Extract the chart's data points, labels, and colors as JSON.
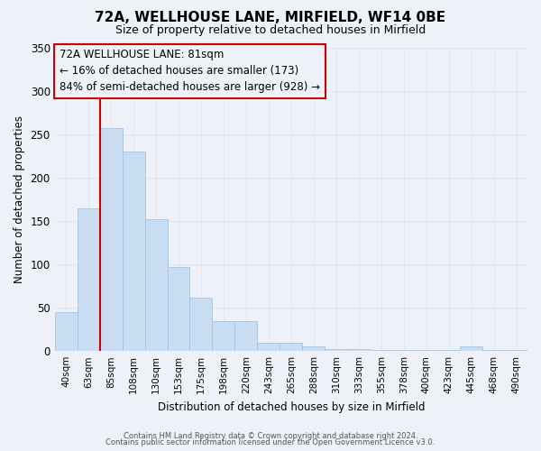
{
  "title": "72A, WELLHOUSE LANE, MIRFIELD, WF14 0BE",
  "subtitle": "Size of property relative to detached houses in Mirfield",
  "xlabel": "Distribution of detached houses by size in Mirfield",
  "ylabel": "Number of detached properties",
  "footer_line1": "Contains HM Land Registry data © Crown copyright and database right 2024.",
  "footer_line2": "Contains public sector information licensed under the Open Government Licence v3.0.",
  "categories": [
    "40sqm",
    "63sqm",
    "85sqm",
    "108sqm",
    "130sqm",
    "153sqm",
    "175sqm",
    "198sqm",
    "220sqm",
    "243sqm",
    "265sqm",
    "288sqm",
    "310sqm",
    "333sqm",
    "355sqm",
    "378sqm",
    "400sqm",
    "423sqm",
    "445sqm",
    "468sqm",
    "490sqm"
  ],
  "bar_heights": [
    45,
    164,
    257,
    230,
    152,
    97,
    62,
    34,
    34,
    10,
    10,
    5,
    2,
    2,
    1,
    1,
    1,
    1,
    5,
    1,
    1
  ],
  "bar_color": "#c9ddf2",
  "bar_edge_color": "#a8c4e0",
  "grid_color": "#dde6f0",
  "background_color": "#eef2f8",
  "vline_color": "#cc0000",
  "vline_pos": 1.5,
  "annotation_text": "72A WELLHOUSE LANE: 81sqm\n← 16% of detached houses are smaller (173)\n84% of semi-detached houses are larger (928) →",
  "annotation_box_color": "#cc0000",
  "ylim": [
    0,
    350
  ],
  "yticks": [
    0,
    50,
    100,
    150,
    200,
    250,
    300,
    350
  ],
  "title_fontsize": 11,
  "subtitle_fontsize": 9,
  "ylabel_fontsize": 8.5,
  "xlabel_fontsize": 8.5,
  "tick_fontsize": 7.5,
  "annotation_fontsize": 8.5,
  "footer_fontsize": 6.0
}
